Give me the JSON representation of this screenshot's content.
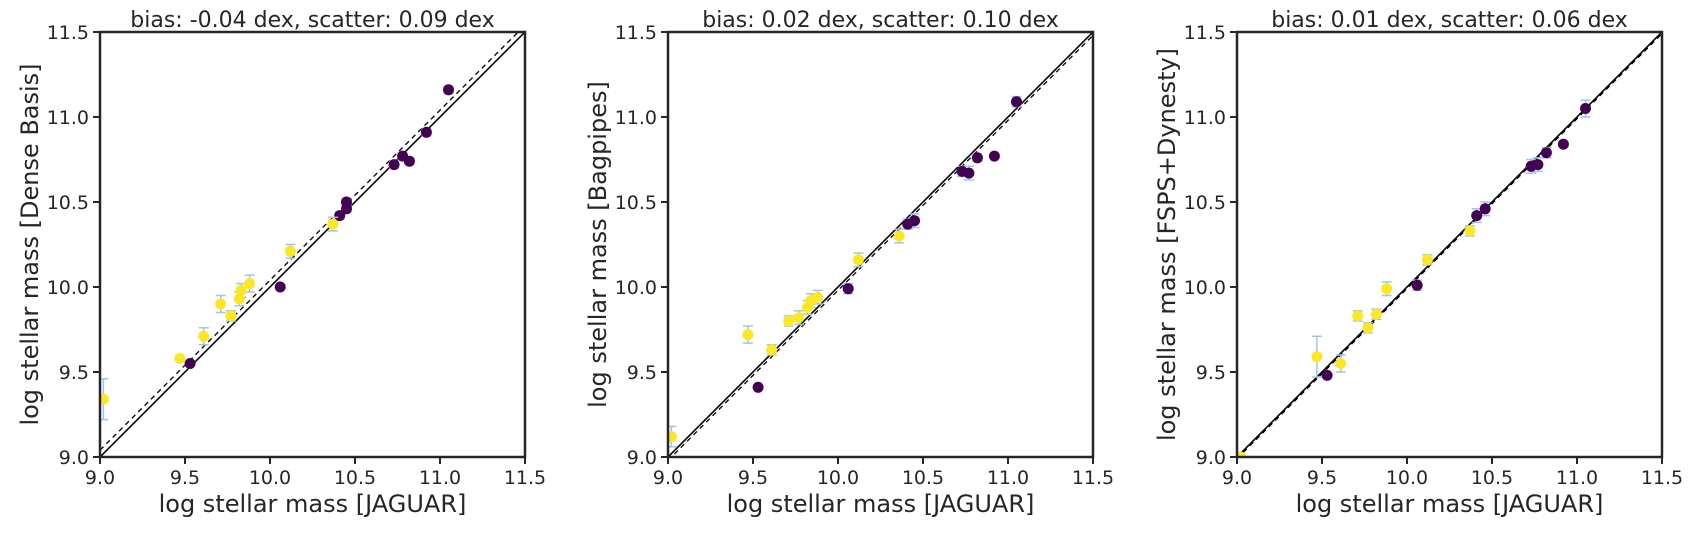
{
  "chart_data": [
    {
      "type": "scatter",
      "title": "bias: -0.04 dex, scatter: 0.09 dex",
      "xlabel": "log stellar mass [JAGUAR]",
      "ylabel": "log stellar mass [Dense Basis]",
      "xlim": [
        9.0,
        11.5
      ],
      "ylim": [
        9.0,
        11.5
      ],
      "xticks": [
        "9.0",
        "9.5",
        "10.0",
        "10.5",
        "11.0",
        "11.5"
      ],
      "yticks": [
        "9.0",
        "9.5",
        "10.0",
        "10.5",
        "11.0",
        "11.5"
      ],
      "grid": false,
      "legend": "none",
      "reference_lines": [
        {
          "kind": "one-to-one",
          "style": "solid",
          "offset": 0.0
        },
        {
          "kind": "bias",
          "style": "dashed",
          "offset": 0.04
        }
      ],
      "series": [
        {
          "color": "#440154",
          "points": [
            {
              "x": 9.53,
              "y": 9.55,
              "err": 0.01
            },
            {
              "x": 10.06,
              "y": 10.0,
              "err": 0.01
            },
            {
              "x": 10.41,
              "y": 10.42,
              "err": 0.02
            },
            {
              "x": 10.45,
              "y": 10.46,
              "err": 0.02
            },
            {
              "x": 10.45,
              "y": 10.5,
              "err": 0.02
            },
            {
              "x": 10.73,
              "y": 10.72,
              "err": 0.02
            },
            {
              "x": 10.78,
              "y": 10.77,
              "err": 0.02
            },
            {
              "x": 10.82,
              "y": 10.74,
              "err": 0.02
            },
            {
              "x": 10.92,
              "y": 10.91,
              "err": 0.02
            },
            {
              "x": 11.05,
              "y": 11.16,
              "err": 0.02
            }
          ]
        },
        {
          "color": "#fde725",
          "points": [
            {
              "x": 9.02,
              "y": 9.34,
              "err": 0.12
            },
            {
              "x": 9.47,
              "y": 9.58,
              "err": 0.01
            },
            {
              "x": 9.61,
              "y": 9.71,
              "err": 0.05
            },
            {
              "x": 9.71,
              "y": 9.9,
              "err": 0.05
            },
            {
              "x": 9.77,
              "y": 9.83,
              "err": 0.03
            },
            {
              "x": 9.82,
              "y": 9.93,
              "err": 0.04
            },
            {
              "x": 9.83,
              "y": 9.98,
              "err": 0.04
            },
            {
              "x": 9.88,
              "y": 10.02,
              "err": 0.05
            },
            {
              "x": 10.12,
              "y": 10.21,
              "err": 0.04
            },
            {
              "x": 10.37,
              "y": 10.37,
              "err": 0.04
            }
          ]
        }
      ]
    },
    {
      "type": "scatter",
      "title": "bias: 0.02 dex, scatter: 0.10 dex",
      "xlabel": "log stellar mass [JAGUAR]",
      "ylabel": "log stellar mass [Bagpipes]",
      "xlim": [
        9.0,
        11.5
      ],
      "ylim": [
        9.0,
        11.5
      ],
      "xticks": [
        "9.0",
        "9.5",
        "10.0",
        "10.5",
        "11.0",
        "11.5"
      ],
      "yticks": [
        "9.0",
        "9.5",
        "10.0",
        "10.5",
        "11.0",
        "11.5"
      ],
      "grid": false,
      "legend": "none",
      "reference_lines": [
        {
          "kind": "one-to-one",
          "style": "solid",
          "offset": 0.0
        },
        {
          "kind": "bias",
          "style": "dashed",
          "offset": -0.02
        }
      ],
      "series": [
        {
          "color": "#440154",
          "points": [
            {
              "x": 9.53,
              "y": 9.41,
              "err": 0.01
            },
            {
              "x": 10.06,
              "y": 9.99,
              "err": 0.03
            },
            {
              "x": 10.41,
              "y": 10.37,
              "err": 0.03
            },
            {
              "x": 10.45,
              "y": 10.39,
              "err": 0.04
            },
            {
              "x": 10.73,
              "y": 10.68,
              "err": 0.03
            },
            {
              "x": 10.77,
              "y": 10.67,
              "err": 0.04
            },
            {
              "x": 10.82,
              "y": 10.76,
              "err": 0.02
            },
            {
              "x": 10.92,
              "y": 10.77,
              "err": 0.01
            },
            {
              "x": 11.05,
              "y": 11.09,
              "err": 0.03
            }
          ]
        },
        {
          "color": "#fde725",
          "points": [
            {
              "x": 9.02,
              "y": 9.12,
              "err": 0.06
            },
            {
              "x": 9.47,
              "y": 9.72,
              "err": 0.05
            },
            {
              "x": 9.61,
              "y": 9.63,
              "err": 0.03
            },
            {
              "x": 9.71,
              "y": 9.8,
              "err": 0.03
            },
            {
              "x": 9.77,
              "y": 9.82,
              "err": 0.04
            },
            {
              "x": 9.82,
              "y": 9.88,
              "err": 0.04
            },
            {
              "x": 9.84,
              "y": 9.92,
              "err": 0.04
            },
            {
              "x": 9.88,
              "y": 9.94,
              "err": 0.04
            },
            {
              "x": 10.12,
              "y": 10.16,
              "err": 0.04
            },
            {
              "x": 10.36,
              "y": 10.3,
              "err": 0.04
            }
          ]
        }
      ]
    },
    {
      "type": "scatter",
      "title": "bias: 0.01 dex, scatter: 0.06 dex",
      "xlabel": "log stellar mass [JAGUAR]",
      "ylabel": "log stellar mass [FSPS+Dynesty]",
      "xlim": [
        9.0,
        11.5
      ],
      "ylim": [
        9.0,
        11.5
      ],
      "xticks": [
        "9.0",
        "9.5",
        "10.0",
        "10.5",
        "11.0",
        "11.5"
      ],
      "yticks": [
        "9.0",
        "9.5",
        "10.0",
        "10.5",
        "11.0",
        "11.5"
      ],
      "grid": false,
      "legend": "none",
      "reference_lines": [
        {
          "kind": "one-to-one",
          "style": "solid",
          "offset": 0.0
        },
        {
          "kind": "bias",
          "style": "dashed",
          "offset": -0.01
        }
      ],
      "series": [
        {
          "color": "#440154",
          "points": [
            {
              "x": 9.53,
              "y": 9.48,
              "err": 0.01
            },
            {
              "x": 10.06,
              "y": 10.01,
              "err": 0.03
            },
            {
              "x": 10.41,
              "y": 10.42,
              "err": 0.04
            },
            {
              "x": 10.46,
              "y": 10.46,
              "err": 0.04
            },
            {
              "x": 10.73,
              "y": 10.71,
              "err": 0.04
            },
            {
              "x": 10.77,
              "y": 10.72,
              "err": 0.04
            },
            {
              "x": 10.82,
              "y": 10.79,
              "err": 0.03
            },
            {
              "x": 10.92,
              "y": 10.84,
              "err": 0.01
            },
            {
              "x": 11.05,
              "y": 11.05,
              "err": 0.05
            }
          ]
        },
        {
          "color": "#fde725",
          "points": [
            {
              "x": 9.02,
              "y": 9.0,
              "err": 0.01
            },
            {
              "x": 9.47,
              "y": 9.59,
              "err": 0.12
            },
            {
              "x": 9.61,
              "y": 9.55,
              "err": 0.05
            },
            {
              "x": 9.71,
              "y": 9.83,
              "err": 0.03
            },
            {
              "x": 9.77,
              "y": 9.76,
              "err": 0.03
            },
            {
              "x": 9.82,
              "y": 9.84,
              "err": 0.03
            },
            {
              "x": 9.88,
              "y": 9.99,
              "err": 0.04
            },
            {
              "x": 10.12,
              "y": 10.16,
              "err": 0.03
            },
            {
              "x": 10.37,
              "y": 10.33,
              "err": 0.03
            }
          ]
        }
      ]
    }
  ]
}
